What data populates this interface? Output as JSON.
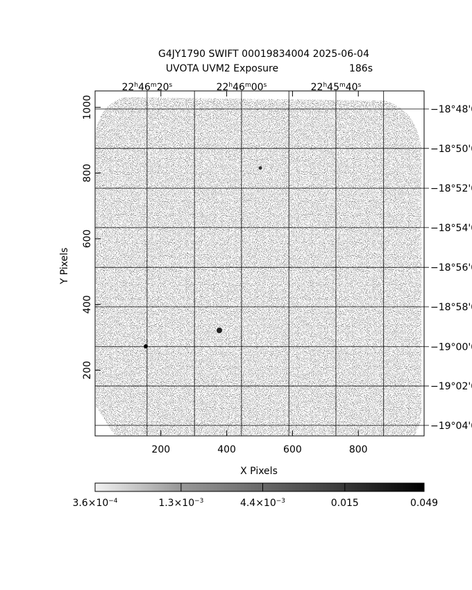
{
  "chart_data": {
    "type": "image",
    "title": "G4JY1790 SWIFT 00019834004 2025-06-04",
    "subtitle": "UVOTA UVM2 Exposure",
    "exposure": "186s",
    "x_label": "X Pixels",
    "y_label": "Y Pixels",
    "xlim": [
      0,
      1000
    ],
    "ylim": [
      0,
      1050
    ],
    "xticks": [
      200,
      400,
      600,
      800
    ],
    "yticks": [
      200,
      400,
      600,
      800,
      1000
    ],
    "ra_ticks": [
      {
        "value": 158,
        "label": [
          "22",
          "h",
          "46",
          "m",
          "20",
          "s"
        ]
      },
      {
        "value": 302,
        "label": null
      },
      {
        "value": 445,
        "label": [
          "22",
          "h",
          "46",
          "m",
          "00",
          "s"
        ]
      },
      {
        "value": 589,
        "label": null
      },
      {
        "value": 732,
        "label": [
          "22",
          "h",
          "45",
          "m",
          "40",
          "s"
        ]
      },
      {
        "value": 877,
        "label": null
      }
    ],
    "dec_ticks": [
      {
        "value": 995,
        "label": "−18°48'0"
      },
      {
        "value": 875,
        "label": "−18°50'0"
      },
      {
        "value": 754,
        "label": "−18°52'0"
      },
      {
        "value": 634,
        "label": "−18°54'0"
      },
      {
        "value": 513,
        "label": "−18°56'0"
      },
      {
        "value": 393,
        "label": "−18°58'0"
      },
      {
        "value": 272,
        "label": "−19°00'0"
      },
      {
        "value": 152,
        "label": "−19°02'0"
      },
      {
        "value": 32,
        "label": "−19°04'0"
      }
    ],
    "colorbar": {
      "log_scale": true,
      "lim": [
        0.00036,
        0.049
      ],
      "ticks": [
        {
          "value": 0.00036,
          "label": [
            "3.6×10",
            "−4"
          ]
        },
        {
          "value": 0.0013,
          "label": [
            "1.3×10",
            "−3"
          ]
        },
        {
          "value": 0.0044,
          "label": [
            "4.4×10",
            "−3"
          ]
        },
        {
          "value": 0.015,
          "label": "0.015"
        },
        {
          "value": 0.049,
          "label": "0.049"
        }
      ]
    }
  }
}
